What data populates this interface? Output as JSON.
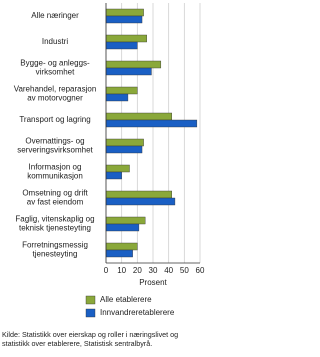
{
  "chart_data": {
    "type": "barh",
    "categories": [
      "Alle næringer",
      "Industri",
      "Bygge- og anleggs-\nvirksomhet",
      "Varehandel, reparasjon\nav motorvogner",
      "Transport og lagring",
      "Overnattings- og\nserveringsvirksomhet",
      "Informasjon og\nkommunikasjon",
      "Omsetning og drift\nav fast eiendom",
      "Faglig, vitenskaplig og\nteknisk tjenesteyting",
      "Forretningsmessig\ntjenesteyting"
    ],
    "series": [
      {
        "name": "Alle etablerere",
        "color": "#8aa83a",
        "values": [
          24,
          26,
          35,
          20,
          42,
          24,
          15,
          42,
          25,
          20
        ]
      },
      {
        "name": "Innvandreretablerere",
        "color": "#1a5fc4",
        "values": [
          23,
          20,
          29,
          14,
          58,
          23,
          10,
          44,
          21,
          17
        ]
      }
    ],
    "xlabel": "Prosent",
    "xlim": [
      0,
      60
    ],
    "xticks": [
      0,
      10,
      20,
      30,
      40,
      50,
      60
    ],
    "grid": true,
    "source": "Kilde: Statistikk over eierskap og roller i næringslivet og statistikk over etablerere, Statistisk sentralbyrå."
  }
}
